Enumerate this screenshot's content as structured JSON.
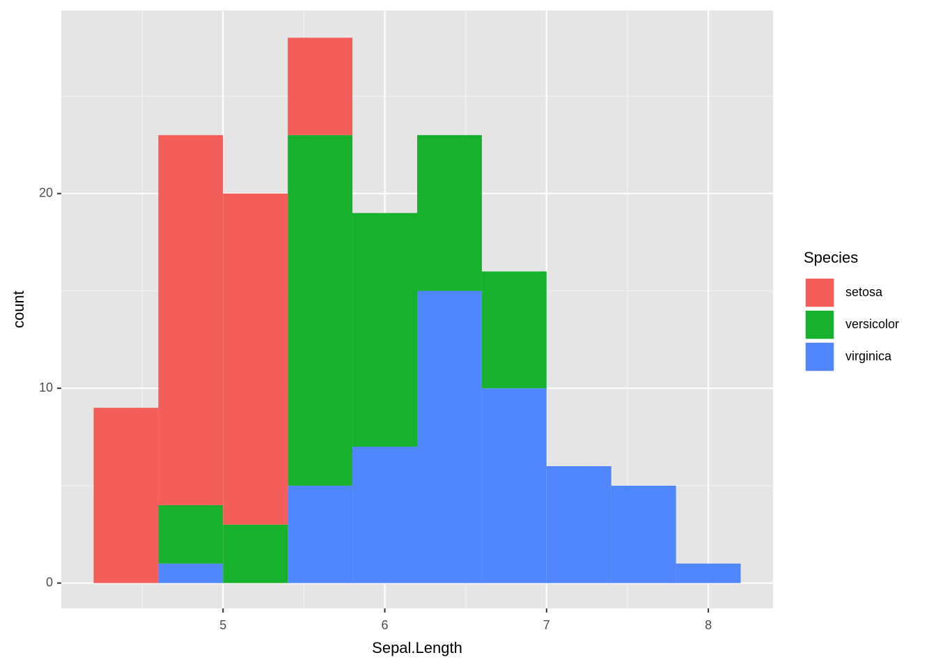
{
  "chart_data": {
    "type": "histogram",
    "x_label": "Sepal.Length",
    "y_label": "count",
    "bins": [
      4.2,
      4.6,
      5.0,
      5.4,
      5.8,
      6.2,
      6.6,
      7.0,
      7.4,
      7.8,
      8.2
    ],
    "series": [
      {
        "name": "setosa",
        "color": "#F35E5A",
        "values": [
          9,
          19,
          17,
          5,
          0,
          0,
          0,
          0,
          0,
          0
        ]
      },
      {
        "name": "versicolor",
        "color": "#18B12E",
        "values": [
          0,
          3,
          3,
          18,
          12,
          8,
          6,
          0,
          0,
          0
        ]
      },
      {
        "name": "virginica",
        "color": "#5086FF",
        "values": [
          0,
          1,
          0,
          5,
          7,
          15,
          10,
          6,
          5,
          1
        ]
      }
    ],
    "stacked": true,
    "legend_title": "Species",
    "legend_position": "right",
    "xlim": [
      4.0,
      8.4
    ],
    "ylim": [
      -1.3,
      29.4
    ],
    "xticks": [
      5,
      6,
      7,
      8
    ],
    "yticks": [
      0,
      10,
      20
    ],
    "grid": true
  }
}
